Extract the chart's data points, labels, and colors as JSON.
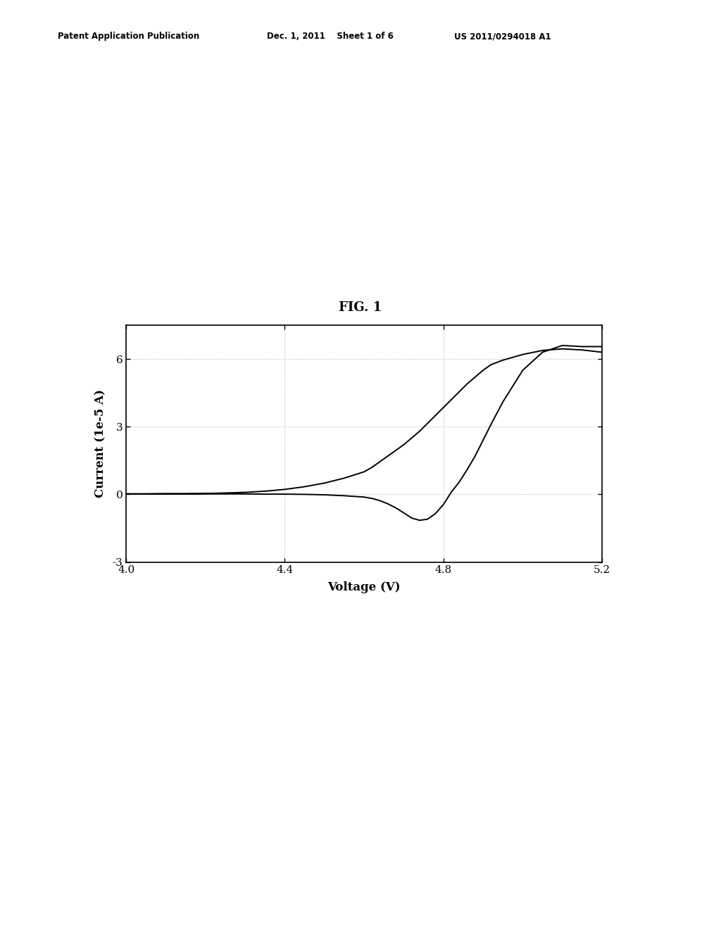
{
  "title": "FIG. 1",
  "xlabel": "Voltage (V)",
  "ylabel": "Current (1e-5 A)",
  "xlim": [
    4.0,
    5.2
  ],
  "ylim": [
    -3,
    7.5
  ],
  "xticks": [
    4.0,
    4.4,
    4.8,
    5.2
  ],
  "yticks": [
    -3,
    0,
    3,
    6
  ],
  "grid_color": "#aaaaaa",
  "line_color": "#000000",
  "background_color": "#ffffff",
  "patent_header_left": "Patent Application Publication",
  "patent_header_mid": "Dec. 1, 2011    Sheet 1 of 6",
  "patent_header_right": "US 2011/0294018 A1",
  "fig_label": "FIG. 1",
  "forward_scan_x": [
    4.0,
    4.05,
    4.1,
    4.15,
    4.2,
    4.25,
    4.3,
    4.35,
    4.4,
    4.45,
    4.5,
    4.55,
    4.6,
    4.62,
    4.64,
    4.66,
    4.68,
    4.7,
    4.72,
    4.74,
    4.76,
    4.78,
    4.8,
    4.82,
    4.84,
    4.86,
    4.88,
    4.9,
    4.92,
    4.95,
    5.0,
    5.05,
    5.1,
    5.15,
    5.2
  ],
  "forward_scan_y": [
    0.02,
    0.02,
    0.02,
    0.02,
    0.02,
    0.02,
    0.02,
    0.01,
    0.01,
    0.0,
    -0.02,
    -0.06,
    -0.12,
    -0.18,
    -0.28,
    -0.42,
    -0.6,
    -0.82,
    -1.05,
    -1.15,
    -1.1,
    -0.85,
    -0.45,
    0.1,
    0.55,
    1.1,
    1.7,
    2.4,
    3.1,
    4.1,
    5.5,
    6.3,
    6.6,
    6.55,
    6.55
  ],
  "reverse_scan_x": [
    5.2,
    5.15,
    5.1,
    5.05,
    5.0,
    4.95,
    4.92,
    4.9,
    4.88,
    4.86,
    4.84,
    4.82,
    4.8,
    4.78,
    4.76,
    4.74,
    4.72,
    4.7,
    4.68,
    4.66,
    4.64,
    4.62,
    4.6,
    4.55,
    4.5,
    4.45,
    4.4,
    4.35,
    4.3,
    4.25,
    4.2,
    4.15,
    4.1,
    4.05,
    4.0
  ],
  "reverse_scan_y": [
    6.3,
    6.4,
    6.45,
    6.38,
    6.2,
    5.95,
    5.75,
    5.5,
    5.2,
    4.9,
    4.55,
    4.2,
    3.85,
    3.5,
    3.15,
    2.8,
    2.5,
    2.2,
    1.95,
    1.7,
    1.45,
    1.2,
    1.0,
    0.72,
    0.5,
    0.34,
    0.22,
    0.14,
    0.09,
    0.06,
    0.04,
    0.03,
    0.03,
    0.02,
    0.02
  ]
}
